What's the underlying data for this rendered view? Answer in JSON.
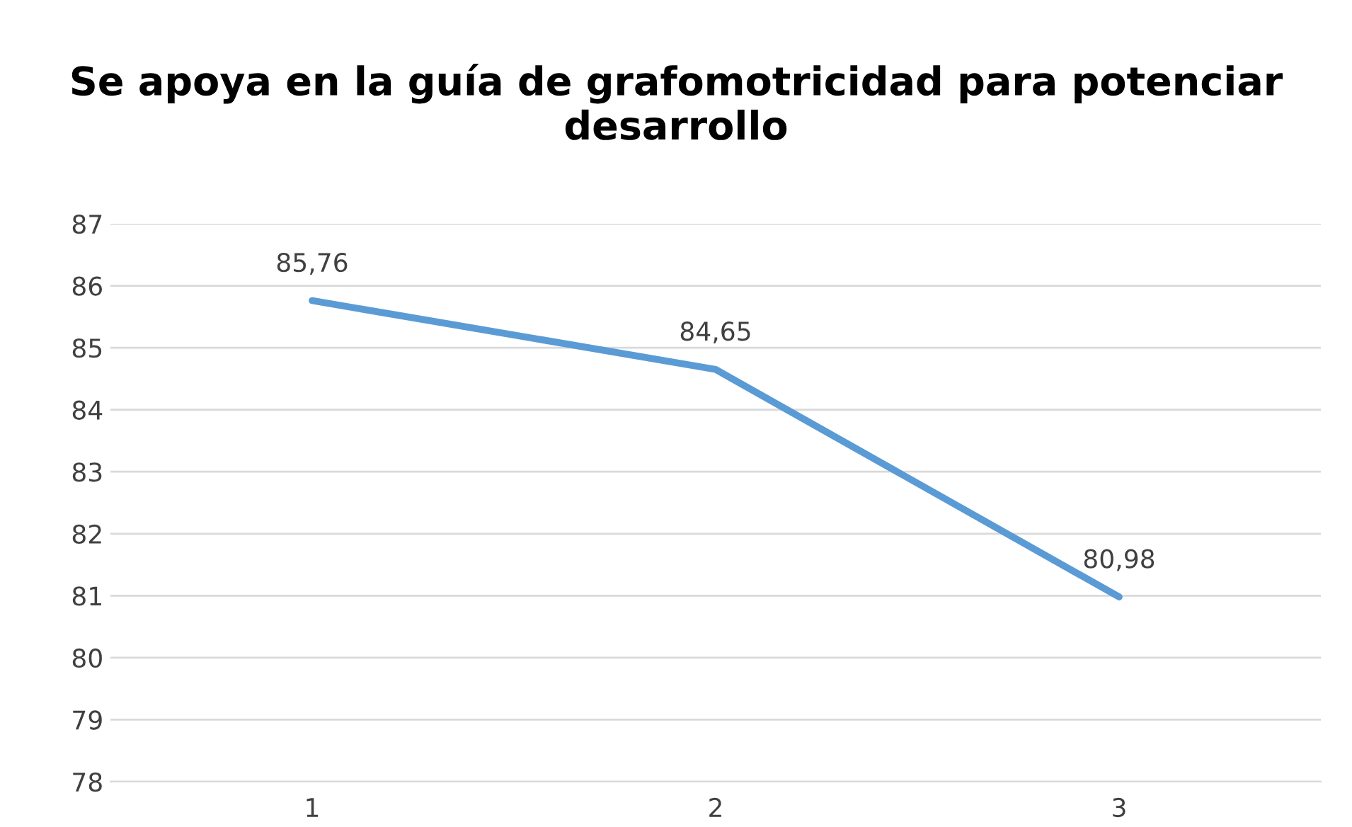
{
  "chart_data": {
    "type": "line",
    "title": "Se apoya en la guía de grafomotricidad para potenciar desarrollo",
    "categories": [
      "1",
      "2",
      "3"
    ],
    "series": [
      {
        "color": "#5b9bd5",
        "values": [
          85.76,
          84.65,
          80.98
        ],
        "value_labels": [
          "85,76",
          "84,65",
          "80,98"
        ]
      }
    ],
    "ylim": [
      78,
      87
    ],
    "yticks": [
      78,
      79,
      80,
      81,
      82,
      83,
      84,
      85,
      86,
      87
    ],
    "grid": "y",
    "marker": "none",
    "line_style": "solid"
  }
}
